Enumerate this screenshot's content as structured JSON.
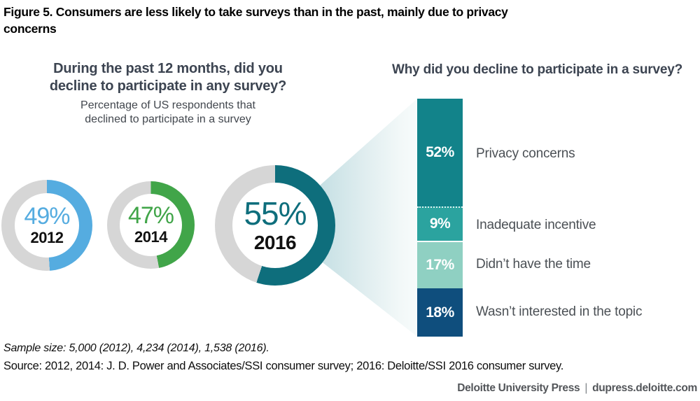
{
  "figure": {
    "title": "Figure 5. Consumers are less likely to take surveys than in the past, mainly due to privacy concerns"
  },
  "left_panel": {
    "question": "During the past 12 months, did you decline to participate in any survey?",
    "subtitle": "Percentage of US respondents that declined to participate in a survey",
    "donuts": [
      {
        "value": 49,
        "value_label": "49%",
        "year": "2012",
        "color": "#55ACE0",
        "track_color": "#D6D6D6"
      },
      {
        "value": 47,
        "value_label": "47%",
        "year": "2014",
        "color": "#41A549",
        "track_color": "#D6D6D6"
      },
      {
        "value": 55,
        "value_label": "55%",
        "year": "2016",
        "color": "#0E6E7C",
        "track_color": "#D6D6D6"
      }
    ]
  },
  "right_panel": {
    "question": "Why did you decline to participate in a survey?",
    "segments": [
      {
        "value": 52,
        "pct_label": "52%",
        "label": "Privacy concerns",
        "color": "#12838A"
      },
      {
        "value": 9,
        "pct_label": "9%",
        "label": "Inadequate incentive",
        "color": "#2BA39F"
      },
      {
        "value": 17,
        "pct_label": "17%",
        "label": "Didn’t have the time",
        "color": "#8FD0C2"
      },
      {
        "value": 18,
        "pct_label": "18%",
        "label": "Wasn’t interested in the topic",
        "color": "#0F4E7D"
      }
    ]
  },
  "footnotes": {
    "sample_size": "Sample size: 5,000 (2012), 4,234 (2014), 1,538 (2016).",
    "source": "Source: 2012, 2014: J. D. Power and Associates/SSI consumer survey; 2016: Deloitte/SSI 2016 consumer survey."
  },
  "footer": {
    "brand": "Deloitte University Press",
    "separator": "|",
    "site": "dupress.deloitte.com"
  },
  "chart_data": [
    {
      "type": "pie",
      "variant": "donut-series",
      "title": "During the past 12 months, did you decline to participate in any survey?",
      "subtitle": "Percentage of US respondents that declined to participate in a survey",
      "categories": [
        "2012",
        "2014",
        "2016"
      ],
      "values": [
        49,
        47,
        55
      ],
      "unit": "%",
      "colors": [
        "#55ACE0",
        "#41A549",
        "#0E6E7C"
      ],
      "track_color": "#D6D6D6",
      "notes": "Each donut filled clockwise from 12 o'clock; 2016 donut drawn larger for emphasis"
    },
    {
      "type": "bar",
      "variant": "stacked-single-column",
      "title": "Why did you decline to participate in a survey?",
      "categories": [
        "Privacy concerns",
        "Inadequate incentive",
        "Didn’t have the time",
        "Wasn’t interested in the topic"
      ],
      "values": [
        52,
        9,
        17,
        18
      ],
      "unit": "%",
      "colors": [
        "#12838A",
        "#2BA39F",
        "#8FD0C2",
        "#0F4E7D"
      ],
      "legend_position": "right-of-bar",
      "notes": "Funnel/cone gradient connects 2016 donut to stacked bar"
    }
  ]
}
